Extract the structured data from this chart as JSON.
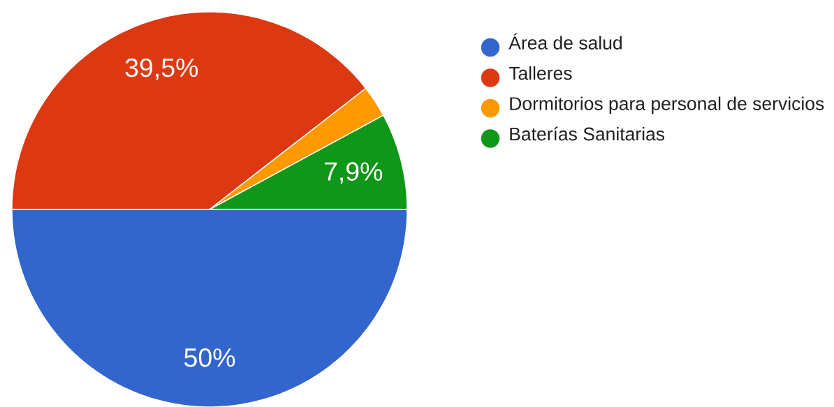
{
  "chart_data": {
    "type": "pie",
    "categories": [
      "Área de salud",
      "Talleres",
      "Dormitorios para personal de servicios",
      "Baterías Sanitarias"
    ],
    "values": [
      50,
      39.5,
      2.6,
      7.9
    ],
    "colors": [
      "#3366cc",
      "#dc3912",
      "#ff9900",
      "#109618"
    ],
    "value_labels": [
      "50%",
      "39,5%",
      null,
      "7,9%"
    ],
    "legend": "right"
  }
}
